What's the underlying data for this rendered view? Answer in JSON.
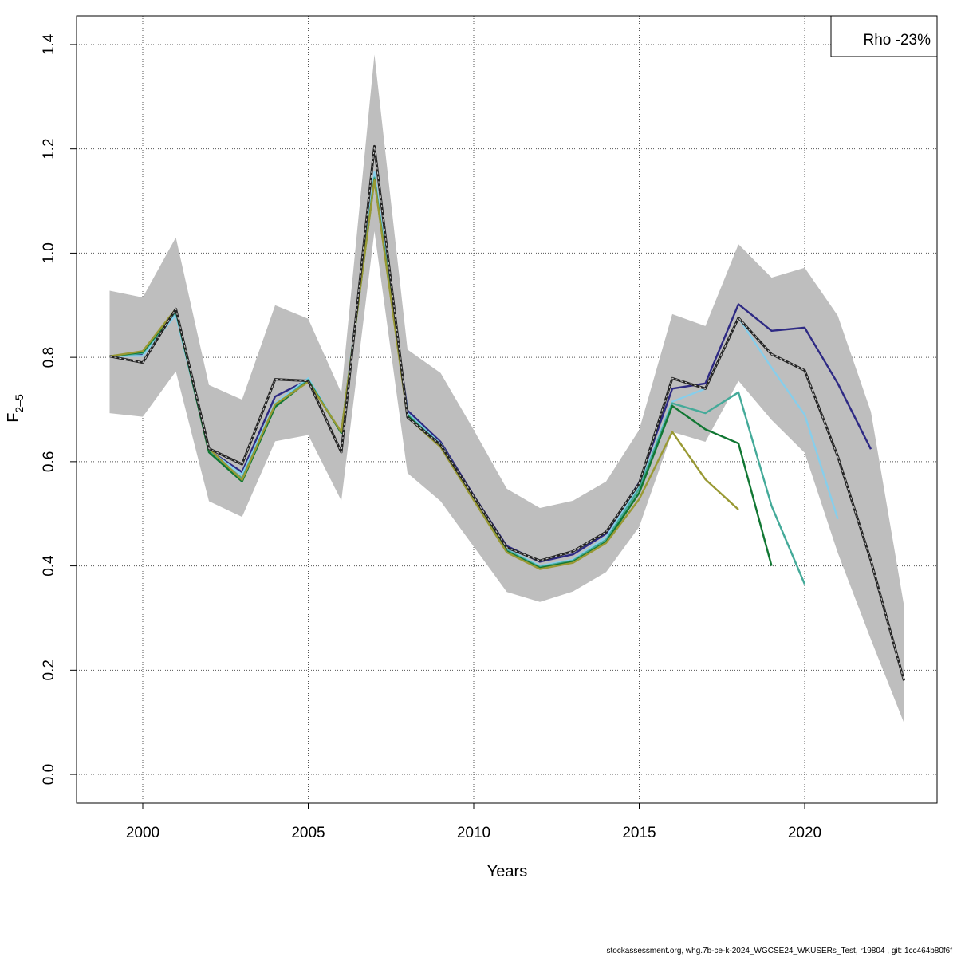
{
  "chart_data": {
    "type": "line",
    "xlabel": "Years",
    "ylabel": "F",
    "ylabel_subscript": "2–5",
    "xlim": [
      1998,
      2024
    ],
    "ylim": [
      -0.055,
      1.455
    ],
    "x_ticks": [
      2000,
      2005,
      2010,
      2015,
      2020
    ],
    "y_ticks": [
      0.0,
      0.2,
      0.4,
      0.6,
      0.8,
      1.0,
      1.2,
      1.4
    ],
    "y_tick_labels": [
      "0.0",
      "0.2",
      "0.4",
      "0.6",
      "0.8",
      "1.0",
      "1.2",
      "1.4"
    ],
    "grid": true,
    "legend": {
      "position": "top-right",
      "text": "Rho -23%"
    },
    "confidence_band": {
      "color": "#bebebe",
      "x": [
        1999,
        2000,
        2001,
        2002,
        2003,
        2004,
        2005,
        2006,
        2007,
        2008,
        2009,
        2010,
        2011,
        2012,
        2013,
        2014,
        2015,
        2016,
        2017,
        2018,
        2019,
        2020,
        2021,
        2022,
        2023
      ],
      "lower": [
        0.693,
        0.686,
        0.773,
        0.524,
        0.494,
        0.639,
        0.651,
        0.525,
        1.042,
        0.578,
        0.524,
        0.437,
        0.35,
        0.331,
        0.351,
        0.388,
        0.475,
        0.657,
        0.638,
        0.755,
        0.68,
        0.617,
        0.425,
        0.259,
        0.099
      ],
      "upper": [
        0.928,
        0.915,
        1.03,
        0.747,
        0.719,
        0.9,
        0.874,
        0.732,
        1.381,
        0.815,
        0.77,
        0.661,
        0.548,
        0.511,
        0.525,
        0.562,
        0.661,
        0.883,
        0.86,
        1.017,
        0.953,
        0.972,
        0.88,
        0.696,
        0.324
      ]
    },
    "series": [
      {
        "color": "#2e2a84",
        "x": [
          1999,
          2000,
          2001,
          2002,
          2003,
          2004,
          2005,
          2006,
          2007,
          2008,
          2009,
          2010,
          2011,
          2012,
          2013,
          2014,
          2015,
          2016,
          2017,
          2018,
          2019,
          2020,
          2021,
          2022
        ],
        "values": [
          0.802,
          0.805,
          0.885,
          0.622,
          0.58,
          0.725,
          0.757,
          0.655,
          1.15,
          0.698,
          0.638,
          0.535,
          0.438,
          0.408,
          0.422,
          0.462,
          0.56,
          0.74,
          0.75,
          0.902,
          0.851,
          0.857,
          0.75,
          0.624
        ]
      },
      {
        "color": "#87ceeb",
        "x": [
          1999,
          2000,
          2001,
          2002,
          2003,
          2004,
          2005,
          2006,
          2007,
          2008,
          2009,
          2010,
          2011,
          2012,
          2013,
          2014,
          2015,
          2016,
          2017,
          2018,
          2019,
          2020,
          2021
        ],
        "values": [
          0.802,
          0.803,
          0.882,
          0.622,
          0.575,
          0.712,
          0.76,
          0.655,
          1.155,
          0.693,
          0.634,
          0.532,
          0.432,
          0.4,
          0.412,
          0.455,
          0.552,
          0.715,
          0.74,
          0.876,
          0.78,
          0.69,
          0.49
        ]
      },
      {
        "color": "#44aa99",
        "x": [
          1999,
          2000,
          2001,
          2002,
          2003,
          2004,
          2005,
          2006,
          2007,
          2008,
          2009,
          2010,
          2011,
          2012,
          2013,
          2014,
          2015,
          2016,
          2017,
          2018,
          2019,
          2020
        ],
        "values": [
          0.802,
          0.808,
          0.888,
          0.62,
          0.568,
          0.708,
          0.757,
          0.655,
          1.145,
          0.69,
          0.632,
          0.53,
          0.43,
          0.398,
          0.41,
          0.45,
          0.548,
          0.712,
          0.693,
          0.733,
          0.515,
          0.365
        ]
      },
      {
        "color": "#117733",
        "x": [
          1999,
          2000,
          2001,
          2002,
          2003,
          2004,
          2005,
          2006,
          2007,
          2008,
          2009,
          2010,
          2011,
          2012,
          2013,
          2014,
          2015,
          2016,
          2017,
          2018,
          2019
        ],
        "values": [
          0.802,
          0.81,
          0.89,
          0.618,
          0.562,
          0.705,
          0.755,
          0.655,
          1.142,
          0.688,
          0.63,
          0.528,
          0.428,
          0.396,
          0.408,
          0.446,
          0.54,
          0.707,
          0.662,
          0.635,
          0.4
        ]
      },
      {
        "color": "#999933",
        "x": [
          1999,
          2000,
          2001,
          2002,
          2003,
          2004,
          2005,
          2006,
          2007,
          2008,
          2009,
          2010,
          2011,
          2012,
          2013,
          2014,
          2015,
          2016,
          2017,
          2018
        ],
        "values": [
          0.802,
          0.812,
          0.893,
          0.625,
          0.565,
          0.71,
          0.753,
          0.657,
          1.14,
          0.685,
          0.628,
          0.526,
          0.426,
          0.394,
          0.406,
          0.444,
          0.528,
          0.657,
          0.566,
          0.508
        ]
      },
      {
        "color": "#222222",
        "dashed": true,
        "x": [
          1999,
          2000,
          2001,
          2002,
          2003,
          2004,
          2005,
          2006,
          2007,
          2008,
          2009,
          2010,
          2011,
          2012,
          2013,
          2014,
          2015,
          2016,
          2017,
          2018,
          2019,
          2020,
          2021,
          2022,
          2023
        ],
        "values": [
          0.802,
          0.79,
          0.893,
          0.625,
          0.595,
          0.758,
          0.755,
          0.618,
          1.205,
          0.685,
          0.632,
          0.533,
          0.435,
          0.41,
          0.428,
          0.465,
          0.558,
          0.76,
          0.74,
          0.876,
          0.806,
          0.775,
          0.61,
          0.41,
          0.18
        ]
      }
    ]
  },
  "footer": "stockassessment.org, whg.7b-ce-k-2024_WGCSE24_WKUSERs_Test, r19804 , git: 1cc464b80f6f"
}
